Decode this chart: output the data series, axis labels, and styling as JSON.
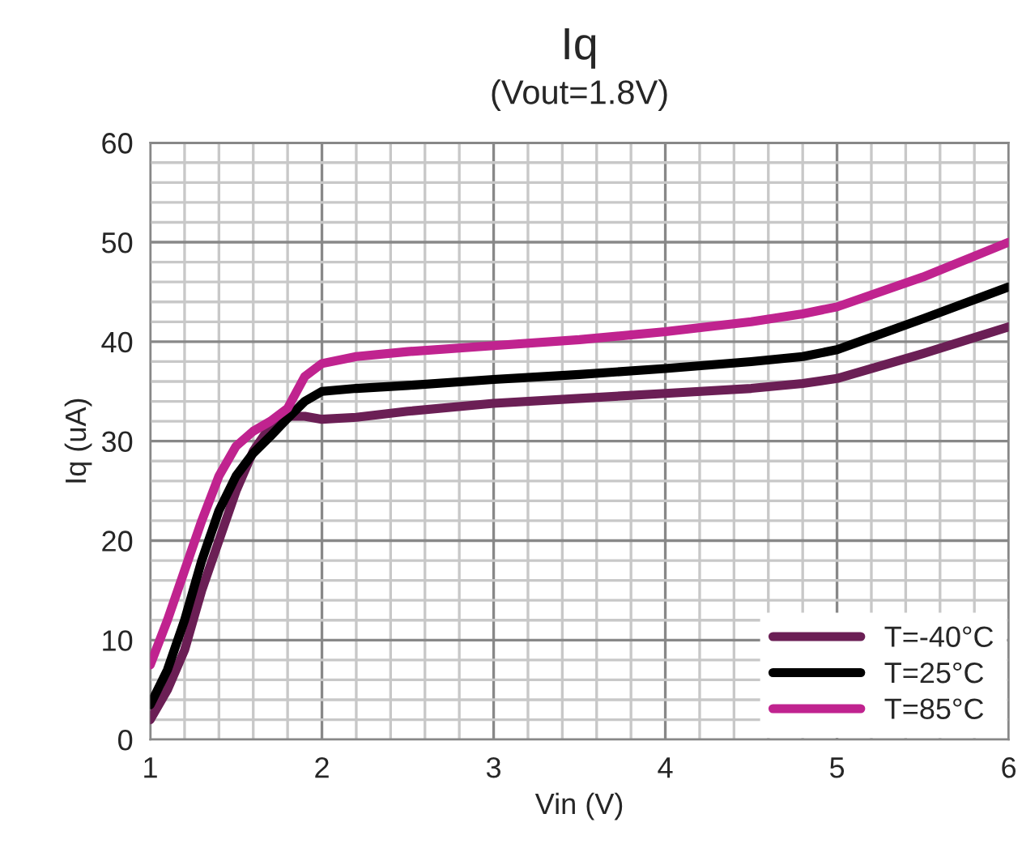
{
  "chart_data": {
    "type": "line",
    "title": "Iq",
    "subtitle": "(Vout=1.8V)",
    "xlabel": "Vin (V)",
    "ylabel": "Iq (uA)",
    "x": [
      1,
      1.1,
      1.2,
      1.3,
      1.4,
      1.5,
      1.6,
      1.7,
      1.8,
      1.9,
      2,
      2.2,
      2.5,
      3,
      3.5,
      4,
      4.5,
      4.8,
      5,
      5.5,
      6
    ],
    "series": [
      {
        "name": "T=-40°C",
        "color": "#6b1f55",
        "values": [
          2,
          5,
          9,
          15,
          20,
          25,
          29,
          31.5,
          32.5,
          32.5,
          32.2,
          32.4,
          33,
          33.8,
          34.3,
          34.8,
          35.3,
          35.8,
          36.3,
          38.8,
          41.5
        ]
      },
      {
        "name": "T=25°C",
        "color": "#000000",
        "values": [
          3.5,
          7,
          12,
          18,
          23,
          26.5,
          28.8,
          30.5,
          32.3,
          34,
          35,
          35.3,
          35.6,
          36.2,
          36.7,
          37.3,
          38,
          38.5,
          39.2,
          42.3,
          45.5
        ]
      },
      {
        "name": "T=85°C",
        "color": "#c0238f",
        "values": [
          7.5,
          12,
          17,
          22,
          26.5,
          29.5,
          31,
          32,
          33.3,
          36.5,
          37.8,
          38.5,
          39,
          39.6,
          40.2,
          41,
          42,
          42.8,
          43.5,
          46.5,
          50
        ]
      }
    ],
    "xlim": [
      1,
      6
    ],
    "xticks": [
      1,
      2,
      3,
      4,
      5,
      6
    ],
    "ylim": [
      0,
      60
    ],
    "yticks": [
      0,
      10,
      20,
      30,
      40,
      50,
      60
    ],
    "grid": true,
    "legend": "bottom right",
    "marker": "none",
    "line_style": "solid"
  }
}
